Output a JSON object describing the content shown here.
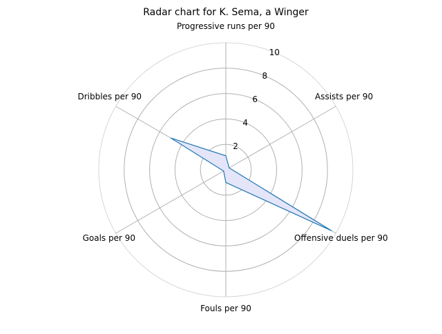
{
  "chart_data": {
    "type": "radar",
    "title": "Radar chart for K. Sema, a Winger",
    "categories": [
      "Progressive runs per 90",
      "Assists per 90",
      "Offensive duels per 90",
      "Fouls per 90",
      "Goals per 90",
      "Dribbles per 90"
    ],
    "series": [
      {
        "values": [
          1.1,
          0.3,
          9.6,
          1.0,
          0.2,
          5.0
        ],
        "line_color": "#1f77b4",
        "fill_color": "#e5e5fa"
      }
    ],
    "r_ticks": [
      "2",
      "4",
      "6",
      "8",
      "10"
    ],
    "rlim": [
      0,
      10
    ],
    "grid": true
  }
}
